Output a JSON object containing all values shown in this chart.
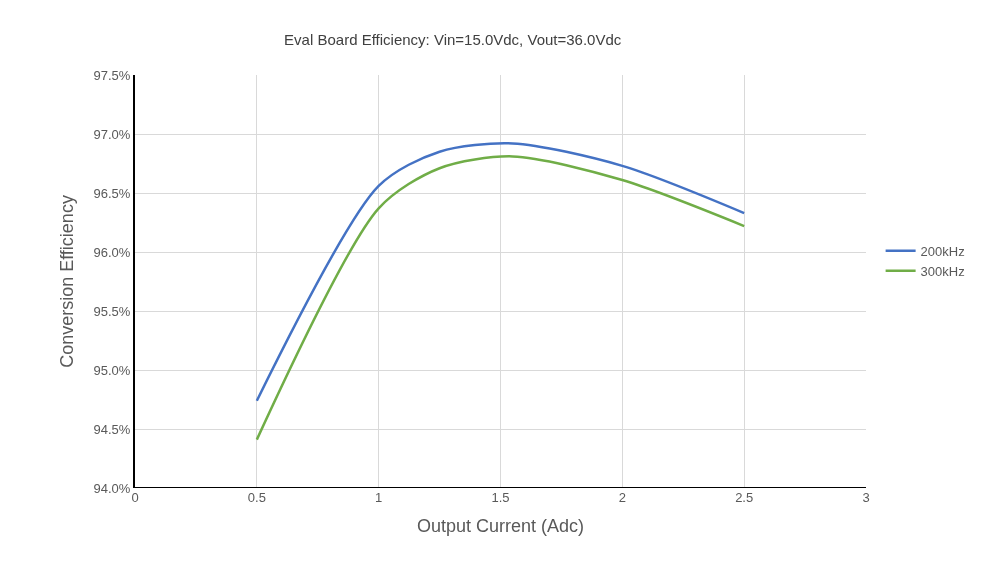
{
  "chart_data": {
    "type": "line",
    "title": "Eval Board Efficiency: Vin=15.0Vdc, Vout=36.0Vdc",
    "xlabel": "Output Current (Adc)",
    "ylabel": "Conversion Efficiency",
    "x": [
      0.5,
      1.0,
      1.25,
      1.55,
      2.0,
      2.5
    ],
    "series": [
      {
        "name": "200kHz",
        "color": "#4472c4",
        "values": [
          94.74,
          96.56,
          96.85,
          96.92,
          96.73,
          96.33
        ]
      },
      {
        "name": "300kHz",
        "color": "#70ad47",
        "values": [
          94.41,
          96.37,
          96.71,
          96.81,
          96.61,
          96.22
        ]
      }
    ],
    "xlim": [
      0,
      3
    ],
    "xticks": [
      0,
      0.5,
      1,
      1.5,
      2,
      2.5,
      3
    ],
    "ylim": [
      94.0,
      97.5
    ],
    "yticks": [
      {
        "value": 94.0,
        "label": "94.0%"
      },
      {
        "value": 94.5,
        "label": "94.5%"
      },
      {
        "value": 95.0,
        "label": "95.0%"
      },
      {
        "value": 95.5,
        "label": "95.5%"
      },
      {
        "value": 96.0,
        "label": "96.0%"
      },
      {
        "value": 96.5,
        "label": "96.5%"
      },
      {
        "value": 97.0,
        "label": "97.0%"
      },
      {
        "value": 97.5,
        "label": "97.5%"
      }
    ],
    "grid": true,
    "legend": "right",
    "marker": "none",
    "line_style": "solid"
  }
}
